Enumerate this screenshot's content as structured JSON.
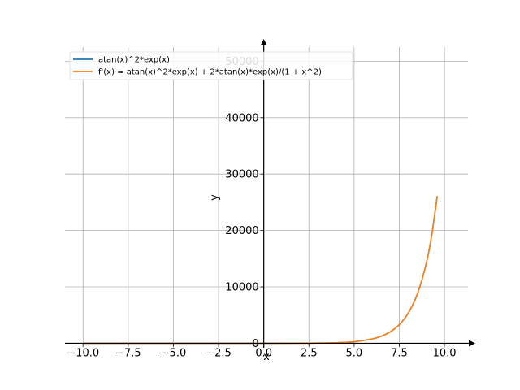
{
  "chart_data": {
    "type": "line",
    "title": "",
    "xlabel": "x",
    "ylabel": "y",
    "xlim": [
      -11.0,
      11.3
    ],
    "ylim": [
      -800,
      52500
    ],
    "x_ticks": [
      -10.0,
      -7.5,
      -5.0,
      -2.5,
      0.0,
      2.5,
      5.0,
      7.5,
      10.0
    ],
    "x_tick_labels": [
      "−10.0",
      "−7.5",
      "−5.0",
      "−2.5",
      "0.0",
      "2.5",
      "5.0",
      "7.5",
      "10.0"
    ],
    "y_ticks": [
      0,
      10000,
      20000,
      30000,
      40000,
      50000
    ],
    "y_tick_labels": [
      "0",
      "10000",
      "20000",
      "30000",
      "40000",
      "50000"
    ],
    "grid": true,
    "legend_position": "top-left",
    "series": [
      {
        "name": "atan(x)^2*exp(x)",
        "color": "#1f77b4",
        "x": [
          -10,
          -8,
          -6,
          -4,
          -2,
          0,
          1,
          2,
          3,
          4,
          5,
          6,
          6.5,
          7,
          7.5,
          8,
          8.5,
          9,
          9.3,
          9.6
        ],
        "y": [
          0.0001,
          0.0007,
          0.0048,
          0.031,
          0.16,
          0,
          1.68,
          8.99,
          31.3,
          96.2,
          276,
          764,
          1244,
          2023,
          3294,
          5364,
          8736,
          14249,
          19277,
          26090
        ]
      },
      {
        "name": "f'(x) = atan(x)^2*exp(x) + 2*atan(x)*exp(x)/(1 + x^2)",
        "color": "#ff7f0e",
        "x": [
          -10,
          -8,
          -6,
          -4,
          -2,
          0,
          1,
          2,
          3,
          4,
          5,
          6,
          6.5,
          7,
          7.5,
          8,
          8.5,
          9,
          9.3,
          9.6
        ],
        "y": [
          0.0001,
          0.0006,
          0.0041,
          0.025,
          0.08,
          0,
          4.18,
          12.24,
          36.2,
          101.3,
          281,
          770,
          1251,
          2030,
          3302,
          5374,
          8746,
          14262,
          19290,
          26105
        ]
      }
    ]
  }
}
